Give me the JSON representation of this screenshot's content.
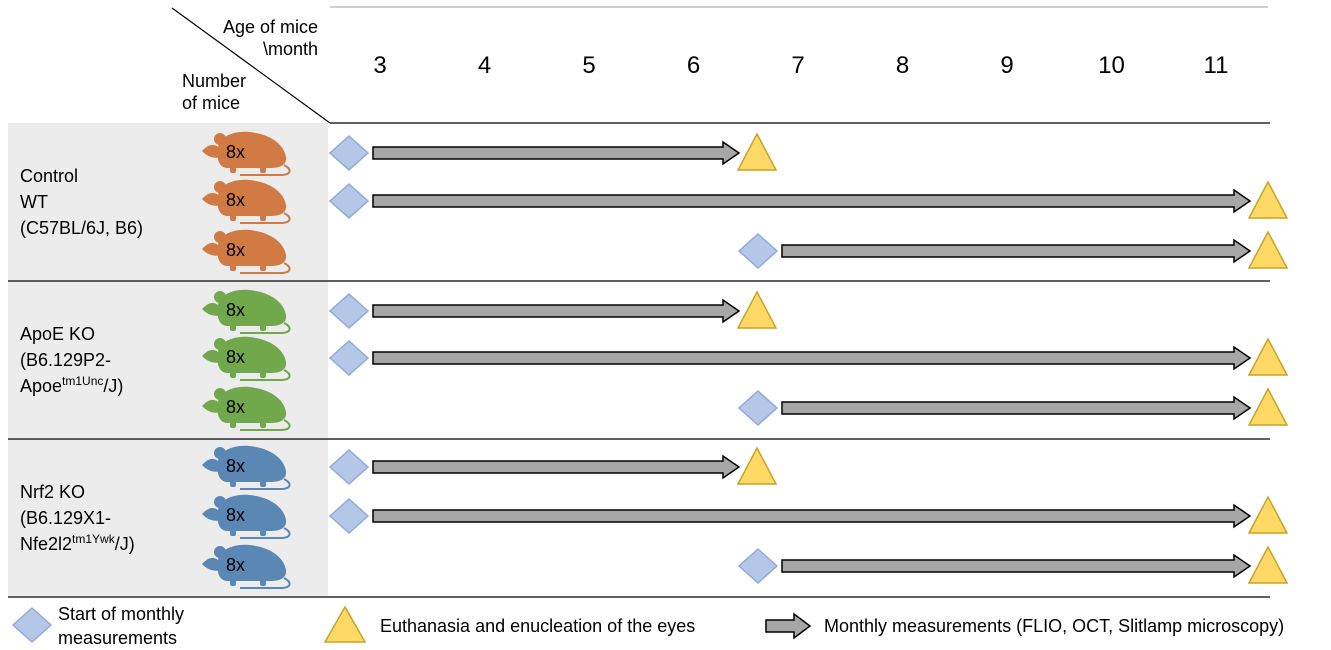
{
  "header": {
    "age_label_line1": "Age of mice",
    "age_label_line2": "\\month",
    "number_label_line1": "Number",
    "number_label_line2": "of mice"
  },
  "months": [
    3,
    4,
    5,
    6,
    7,
    8,
    9,
    10,
    11
  ],
  "groups": [
    {
      "label_line1": "Control",
      "label_line2": "WT",
      "label_line3": "(C57BL/6J, B6)",
      "color": "#d17a44",
      "rows": [
        {
          "count": "8x",
          "start_month": 3,
          "end_month": 6.5
        },
        {
          "count": "8x",
          "start_month": 3,
          "end_month": 11.5
        },
        {
          "count": "8x",
          "start_month": 6.5,
          "end_month": 11.5
        }
      ]
    },
    {
      "label_line1": "ApoE KO",
      "label_line2": "(B6.129P2-",
      "label_line3_pre": "Apoe",
      "label_line3_sup": "tm1Unc",
      "label_line3_post": "/J)",
      "color": "#72a84c",
      "rows": [
        {
          "count": "8x",
          "start_month": 3,
          "end_month": 6.5
        },
        {
          "count": "8x",
          "start_month": 3,
          "end_month": 11.5
        },
        {
          "count": "8x",
          "start_month": 6.5,
          "end_month": 11.5
        }
      ]
    },
    {
      "label_line1": "Nrf2 KO",
      "label_line2": "(B6.129X1-",
      "label_line3_pre": "Nfe2l2",
      "label_line3_sup": "tm1Ywk",
      "label_line3_post": "/J)",
      "color": "#5b87b5",
      "rows": [
        {
          "count": "8x",
          "start_month": 3,
          "end_month": 6.5
        },
        {
          "count": "8x",
          "start_month": 3,
          "end_month": 11.5
        },
        {
          "count": "8x",
          "start_month": 6.5,
          "end_month": 11.5
        }
      ]
    }
  ],
  "legend": {
    "start_line1": "Start of monthly",
    "start_line2": "measurements",
    "euthanasia": "Euthanasia and enucleation of the eyes",
    "monthly": "Monthly measurements (FLIO, OCT, Slitlamp microscopy)"
  },
  "colors": {
    "diamond_fill": "#b4c7e7",
    "diamond_stroke": "#8faadc",
    "triangle_fill": "#ffd966",
    "triangle_stroke": "#c9a227",
    "arrow_fill": "#a6a6a6",
    "label_panel": "#ececec"
  }
}
